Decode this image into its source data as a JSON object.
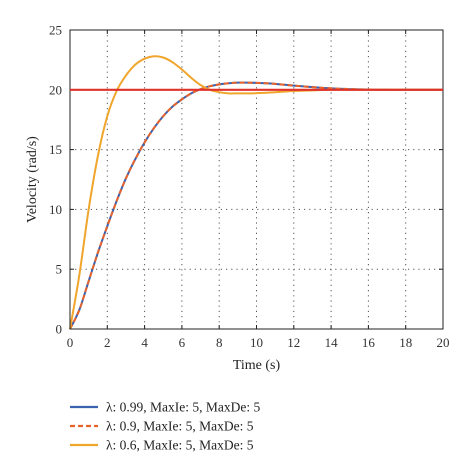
{
  "chart_data": {
    "type": "line",
    "xlabel": "Time (s)",
    "ylabel": "Velocity (rad/s)",
    "xlim": [
      0,
      20
    ],
    "ylim": [
      0,
      25
    ],
    "xticks": [
      "0",
      "2",
      "4",
      "6",
      "8",
      "10",
      "12",
      "14",
      "16",
      "18",
      "20"
    ],
    "yticks": [
      "0",
      "5",
      "10",
      "15",
      "20",
      "25"
    ],
    "grid": true,
    "reference": {
      "value": 20,
      "color": "#e0322c"
    },
    "legend_position": "bottom",
    "series": [
      {
        "name": "λ: 0.99, MaxIe: 5, MaxDe: 5",
        "color": "#3a62b0",
        "dash": false,
        "x": [
          0,
          0.5,
          1,
          1.5,
          2,
          2.5,
          3,
          3.5,
          4,
          4.5,
          5,
          5.5,
          6,
          6.5,
          7,
          7.5,
          8,
          8.5,
          9,
          9.5,
          10,
          10.5,
          11,
          11.5,
          12,
          13,
          14,
          15,
          16,
          17,
          18,
          19,
          20
        ],
        "y": [
          0,
          1.6,
          4.0,
          6.4,
          8.6,
          10.7,
          12.6,
          14.2,
          15.6,
          16.8,
          17.8,
          18.6,
          19.2,
          19.7,
          20.05,
          20.3,
          20.45,
          20.55,
          20.6,
          20.6,
          20.58,
          20.55,
          20.5,
          20.42,
          20.35,
          20.22,
          20.12,
          20.06,
          20.02,
          20.0,
          20.0,
          20.0,
          20.0
        ]
      },
      {
        "name": "λ: 0.9, MaxIe: 5, MaxDe: 5",
        "color": "#e8632a",
        "dash": true,
        "x": [
          0,
          0.5,
          1,
          1.5,
          2,
          2.5,
          3,
          3.5,
          4,
          4.5,
          5,
          5.5,
          6,
          6.5,
          7,
          7.5,
          8,
          8.5,
          9,
          9.5,
          10,
          10.5,
          11,
          11.5,
          12,
          13,
          14,
          15,
          16,
          17,
          18,
          19,
          20
        ],
        "y": [
          0,
          1.6,
          4.0,
          6.4,
          8.6,
          10.7,
          12.6,
          14.2,
          15.6,
          16.8,
          17.8,
          18.6,
          19.2,
          19.7,
          20.05,
          20.3,
          20.45,
          20.55,
          20.6,
          20.6,
          20.58,
          20.55,
          20.5,
          20.42,
          20.35,
          20.22,
          20.12,
          20.06,
          20.02,
          20.0,
          20.0,
          20.0,
          20.0
        ]
      },
      {
        "name": "λ: 0.6, MaxIe: 5, MaxDe: 5",
        "color": "#f0a52c",
        "dash": false,
        "x": [
          0,
          0.5,
          1,
          1.5,
          2,
          2.5,
          3,
          3.5,
          4,
          4.5,
          5,
          5.5,
          6,
          6.5,
          7,
          7.5,
          8,
          8.5,
          9,
          9.5,
          10,
          10.5,
          11,
          11.5,
          12,
          13,
          14,
          15,
          16,
          17,
          18,
          19,
          20
        ],
        "y": [
          0,
          4.5,
          10.0,
          14.5,
          17.8,
          19.9,
          21.2,
          22.1,
          22.6,
          22.8,
          22.7,
          22.3,
          21.7,
          21.0,
          20.4,
          20.0,
          19.8,
          19.7,
          19.7,
          19.7,
          19.72,
          19.75,
          19.8,
          19.85,
          19.9,
          19.95,
          20.0,
          20.0,
          20.0,
          20.0,
          20.0,
          20.0,
          20.0
        ]
      }
    ]
  }
}
